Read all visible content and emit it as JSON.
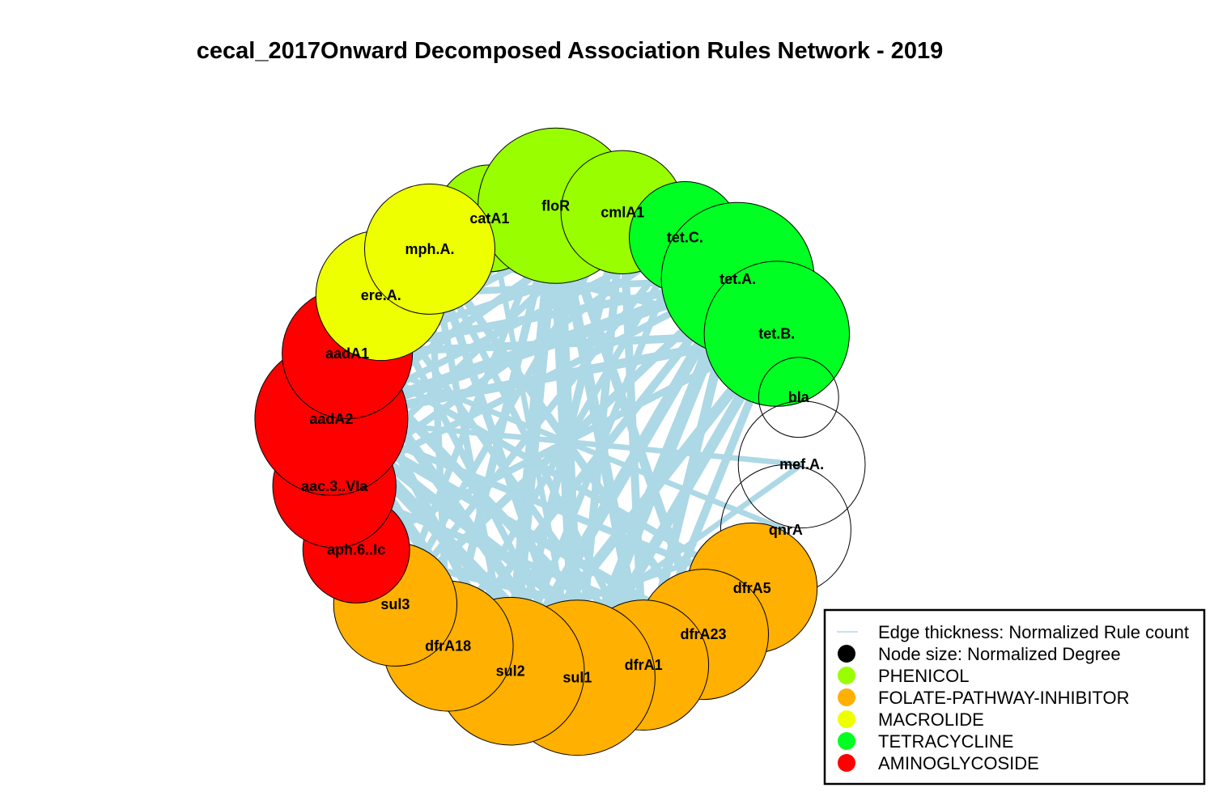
{
  "title": "cecal_2017Onward Decomposed Association Rules Network - 2019",
  "colors": {
    "PHENICOL": "#99ff00",
    "FOLATE-PATHWAY-INHIBITOR": "#ffb000",
    "MACROLIDE": "#eeff00",
    "TETRACYCLINE": "#00ff22",
    "AMINOGLYCOSIDE": "#ff0000",
    "NONE": "none",
    "edge": "#add8e6"
  },
  "nodes": [
    {
      "id": "catA1",
      "label": "catA1",
      "class": "PHENICOL",
      "size": 0.25
    },
    {
      "id": "floR",
      "label": "floR",
      "class": "PHENICOL",
      "size": 1.0
    },
    {
      "id": "cmlA1",
      "label": "cmlA1",
      "class": "PHENICOL",
      "size": 0.45
    },
    {
      "id": "tet.C.",
      "label": "tet.C.",
      "class": "TETRACYCLINE",
      "size": 0.3
    },
    {
      "id": "tet.A.",
      "label": "tet.A.",
      "class": "TETRACYCLINE",
      "size": 0.95
    },
    {
      "id": "tet.B.",
      "label": "tet.B.",
      "class": "TETRACYCLINE",
      "size": 0.8
    },
    {
      "id": "bla",
      "label": "bla",
      "class": "NONE",
      "size": 0.05
    },
    {
      "id": "mef.A.",
      "label": "mef.A.",
      "class": "NONE",
      "size": 0.5
    },
    {
      "id": "qnrA",
      "label": "qnrA",
      "class": "NONE",
      "size": 0.55
    },
    {
      "id": "dfrA5",
      "label": "dfrA5",
      "class": "FOLATE-PATHWAY-INHIBITOR",
      "size": 0.55
    },
    {
      "id": "dfrA23",
      "label": "dfrA23",
      "class": "FOLATE-PATHWAY-INHIBITOR",
      "size": 0.55
    },
    {
      "id": "dfrA1",
      "label": "dfrA1",
      "class": "FOLATE-PATHWAY-INHIBITOR",
      "size": 0.55
    },
    {
      "id": "sul1",
      "label": "sul1",
      "class": "FOLATE-PATHWAY-INHIBITOR",
      "size": 1.0
    },
    {
      "id": "sul2",
      "label": "sul2",
      "class": "FOLATE-PATHWAY-INHIBITOR",
      "size": 0.85
    },
    {
      "id": "dfrA18",
      "label": "dfrA18",
      "class": "FOLATE-PATHWAY-INHIBITOR",
      "size": 0.55
    },
    {
      "id": "sul3",
      "label": "sul3",
      "class": "FOLATE-PATHWAY-INHIBITOR",
      "size": 0.45
    },
    {
      "id": "aph.6..Ic",
      "label": "aph.6..Ic",
      "class": "AMINOGLYCOSIDE",
      "size": 0.25
    },
    {
      "id": "aac.3..VIa",
      "label": "aac.3..VIa",
      "class": "AMINOGLYCOSIDE",
      "size": 0.45
    },
    {
      "id": "aadA2",
      "label": "aadA2",
      "class": "AMINOGLYCOSIDE",
      "size": 0.95
    },
    {
      "id": "aadA1",
      "label": "aadA1",
      "class": "AMINOGLYCOSIDE",
      "size": 0.55
    },
    {
      "id": "ere.A.",
      "label": "ere.A.",
      "class": "MACROLIDE",
      "size": 0.55
    },
    {
      "id": "mph.A.",
      "label": "mph.A.",
      "class": "MACROLIDE",
      "size": 0.55
    }
  ],
  "edges": [
    [
      "floR",
      "sul1",
      1.0
    ],
    [
      "floR",
      "sul2",
      0.9
    ],
    [
      "floR",
      "dfrA1",
      0.7
    ],
    [
      "floR",
      "tet.A.",
      0.8
    ],
    [
      "floR",
      "aadA2",
      0.85
    ],
    [
      "floR",
      "aadA1",
      0.6
    ],
    [
      "floR",
      "dfrA23",
      0.6
    ],
    [
      "floR",
      "dfrA18",
      0.5
    ],
    [
      "floR",
      "tet.B.",
      0.6
    ],
    [
      "floR",
      "sul3",
      0.4
    ],
    [
      "tet.A.",
      "sul1",
      0.9
    ],
    [
      "tet.A.",
      "sul2",
      0.8
    ],
    [
      "tet.A.",
      "aadA2",
      0.8
    ],
    [
      "tet.A.",
      "dfrA1",
      0.6
    ],
    [
      "tet.A.",
      "aadA1",
      0.5
    ],
    [
      "tet.A.",
      "dfrA18",
      0.5
    ],
    [
      "tet.A.",
      "mph.A.",
      0.4
    ],
    [
      "tet.A.",
      "aac.3..VIa",
      0.4
    ],
    [
      "tet.A.",
      "sul3",
      0.5
    ],
    [
      "tet.B.",
      "sul1",
      0.7
    ],
    [
      "tet.B.",
      "sul2",
      0.7
    ],
    [
      "tet.B.",
      "aadA2",
      0.6
    ],
    [
      "tet.B.",
      "dfrA1",
      0.5
    ],
    [
      "tet.B.",
      "aadA1",
      0.5
    ],
    [
      "tet.B.",
      "aph.6..Ic",
      0.4
    ],
    [
      "sul1",
      "aadA2",
      0.9
    ],
    [
      "sul1",
      "aadA1",
      0.7
    ],
    [
      "sul1",
      "mph.A.",
      0.5
    ],
    [
      "sul1",
      "ere.A.",
      0.4
    ],
    [
      "sul1",
      "cmlA1",
      0.5
    ],
    [
      "sul1",
      "dfrA18",
      0.4
    ],
    [
      "sul2",
      "aadA2",
      0.8
    ],
    [
      "sul2",
      "aadA1",
      0.6
    ],
    [
      "sul2",
      "cmlA1",
      0.5
    ],
    [
      "sul2",
      "tet.C.",
      0.4
    ],
    [
      "sul2",
      "mph.A.",
      0.4
    ],
    [
      "aadA2",
      "dfrA1",
      0.7
    ],
    [
      "aadA2",
      "dfrA23",
      0.6
    ],
    [
      "aadA2",
      "cmlA1",
      0.5
    ],
    [
      "aadA2",
      "tet.C.",
      0.4
    ],
    [
      "aadA2",
      "mef.A.",
      0.3
    ],
    [
      "aadA1",
      "dfrA1",
      0.6
    ],
    [
      "aadA1",
      "dfrA5",
      0.4
    ],
    [
      "aadA1",
      "cmlA1",
      0.4
    ],
    [
      "aadA1",
      "qnrA",
      0.3
    ],
    [
      "mph.A.",
      "dfrA23",
      0.5
    ],
    [
      "mph.A.",
      "dfrA1",
      0.4
    ],
    [
      "mph.A.",
      "tet.B.",
      0.4
    ],
    [
      "ere.A.",
      "dfrA1",
      0.4
    ],
    [
      "ere.A.",
      "tet.A.",
      0.4
    ],
    [
      "cmlA1",
      "dfrA1",
      0.5
    ],
    [
      "cmlA1",
      "sul3",
      0.4
    ],
    [
      "cmlA1",
      "aac.3..VIa",
      0.4
    ],
    [
      "catA1",
      "sul1",
      0.3
    ],
    [
      "catA1",
      "tet.A.",
      0.3
    ],
    [
      "tet.C.",
      "aadA1",
      0.4
    ],
    [
      "tet.C.",
      "dfrA18",
      0.4
    ],
    [
      "dfrA1",
      "sul3",
      0.4
    ],
    [
      "dfrA23",
      "sul2",
      0.5
    ],
    [
      "dfrA23",
      "aac.3..VIa",
      0.4
    ],
    [
      "dfrA5",
      "sul2",
      0.4
    ],
    [
      "dfrA5",
      "aadA2",
      0.4
    ],
    [
      "mef.A.",
      "sul2",
      0.3
    ],
    [
      "qnrA",
      "sul1",
      0.3
    ],
    [
      "qnrA",
      "dfrA18",
      0.3
    ],
    [
      "aph.6..Ic",
      "sul1",
      0.4
    ],
    [
      "aph.6..Ic",
      "dfrA23",
      0.4
    ],
    [
      "aac.3..VIa",
      "tet.C.",
      0.4
    ],
    [
      "sul3",
      "tet.C.",
      0.4
    ],
    [
      "dfrA18",
      "mph.A.",
      0.4
    ]
  ],
  "legend": {
    "items": [
      {
        "label": "Edge thickness: Normalized Rule count",
        "type": "line",
        "color": "#add8e6"
      },
      {
        "label": "Node size: Normalized Degree",
        "type": "dot",
        "color": "#000000"
      },
      {
        "label": "PHENICOL",
        "type": "dot",
        "color": "#99ff00"
      },
      {
        "label": "FOLATE-PATHWAY-INHIBITOR",
        "type": "dot",
        "color": "#ffb000"
      },
      {
        "label": "MACROLIDE",
        "type": "dot",
        "color": "#eeff00"
      },
      {
        "label": "TETRACYCLINE",
        "type": "dot",
        "color": "#00ff22"
      },
      {
        "label": "AMINOGLYCOSIDE",
        "type": "dot",
        "color": "#ff0000"
      }
    ]
  }
}
